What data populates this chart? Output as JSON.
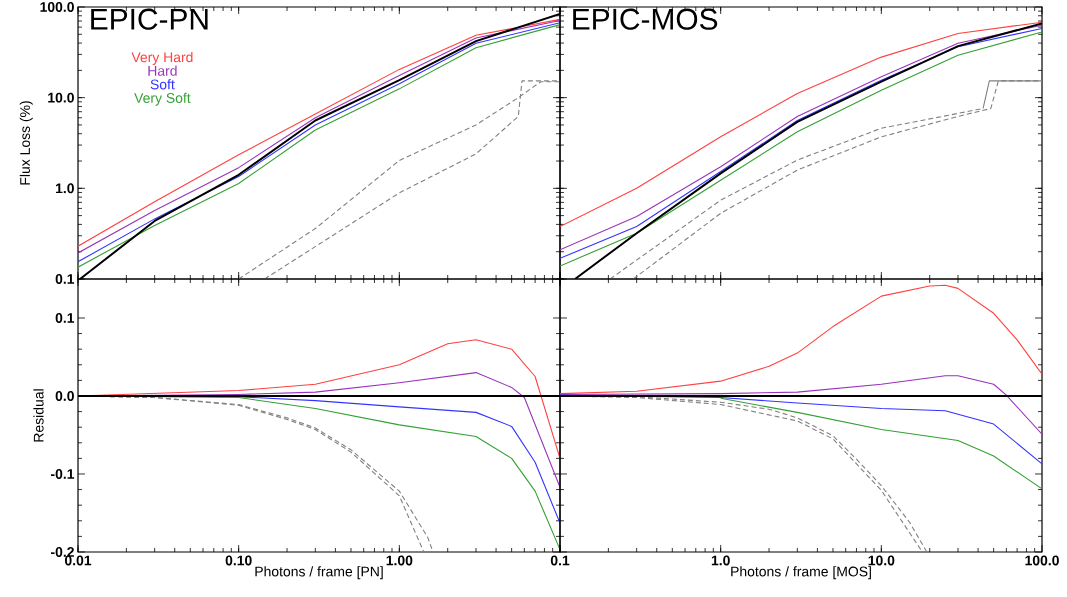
{
  "chart_data": [
    {
      "type": "line",
      "title": "EPIC-PN",
      "ylabel": "Flux Loss (%)",
      "log": "xy",
      "legend": "top left",
      "tick_labels": "y",
      "xlim": [
        0.01,
        10
      ],
      "xticks": [
        0.01,
        0.1,
        1,
        10
      ],
      "ylim": [
        0.1,
        100
      ],
      "yticks": [
        0.1,
        {
          "value": 1,
          "label": "1.0"
        },
        {
          "value": 10,
          "label": "10.0"
        },
        {
          "value": 100,
          "label": "100.0"
        }
      ],
      "series": [
        {
          "name": "Very Hard",
          "color": "#ff4040",
          "line_style": "solid",
          "x": [
            0.01,
            0.03,
            0.1,
            0.3,
            1,
            3,
            10
          ],
          "values": [
            0.23,
            0.71,
            2.34,
            6.6,
            20.5,
            48.8,
            73
          ]
        },
        {
          "name": "Hard",
          "color": "#9933bb",
          "line_style": "solid",
          "x": [
            0.01,
            0.03,
            0.1,
            0.3,
            1,
            3,
            10
          ],
          "values": [
            0.194,
            0.57,
            1.69,
            6.0,
            17.6,
            45.5,
            71
          ]
        },
        {
          "name": "Soft",
          "color": "#3333ff",
          "line_style": "solid",
          "x": [
            0.01,
            0.03,
            0.1,
            0.3,
            1,
            3,
            10
          ],
          "values": [
            0.155,
            0.46,
            1.35,
            5.0,
            14.2,
            39.8,
            67
          ]
        },
        {
          "name": "Very Soft",
          "color": "#33a033",
          "line_style": "solid",
          "x": [
            0.01,
            0.03,
            0.1,
            0.3,
            1,
            3,
            10
          ],
          "values": [
            0.135,
            0.39,
            1.13,
            4.4,
            12.5,
            35.5,
            64
          ]
        },
        {
          "color": "#000000",
          "line_style": "solid",
          "x": [
            0.0103,
            0.03,
            0.1,
            0.3,
            1,
            3,
            10
          ],
          "values": [
            0.1,
            0.437,
            1.41,
            5.6,
            15.6,
            42,
            84
          ]
        },
        {
          "color": "#808080",
          "line_style": "dashed",
          "x": [
            0.1,
            0.3,
            1,
            3,
            5.5,
            7.6,
            10
          ],
          "values": [
            0.1,
            0.36,
            2.03,
            5.0,
            10,
            15,
            15
          ]
        },
        {
          "color": "#808080",
          "line_style": "dashed",
          "x": [
            0.145,
            1,
            3,
            5.5,
            5.8,
            10
          ],
          "values": [
            0.1,
            0.89,
            2.4,
            6.2,
            15.3,
            15.3
          ]
        }
      ]
    },
    {
      "type": "line",
      "title": "EPIC-MOS",
      "log": "xy",
      "tick_labels": false,
      "xlim": [
        0.1,
        100
      ],
      "xticks": [
        0.1,
        1,
        10,
        100
      ],
      "ylim": [
        0.1,
        100
      ],
      "yticks": [
        0.1,
        1,
        10,
        100
      ],
      "series": [
        {
          "color": "#ff4040",
          "line_style": "solid",
          "x": [
            0.1,
            0.3,
            1,
            3,
            10,
            30,
            100
          ],
          "values": [
            0.378,
            1.0,
            3.7,
            11.1,
            28,
            51,
            68
          ]
        },
        {
          "color": "#9933bb",
          "line_style": "solid",
          "x": [
            0.1,
            0.3,
            1,
            3,
            10,
            30,
            100
          ],
          "values": [
            0.21,
            0.49,
            1.73,
            6.2,
            17.0,
            39.8,
            63
          ]
        },
        {
          "color": "#3333ff",
          "line_style": "solid",
          "x": [
            0.1,
            0.3,
            1,
            3,
            10,
            30,
            100
          ],
          "values": [
            0.169,
            0.38,
            1.53,
            5.6,
            15.6,
            36.5,
            58
          ]
        },
        {
          "color": "#33a033",
          "line_style": "solid",
          "x": [
            0.1,
            0.3,
            1,
            3,
            10,
            30,
            100
          ],
          "values": [
            0.139,
            0.32,
            1.23,
            4.2,
            12.1,
            29.4,
            53
          ]
        },
        {
          "color": "#000000",
          "line_style": "solid",
          "x": [
            0.124,
            0.3,
            1,
            3,
            10,
            30,
            100
          ],
          "values": [
            0.1,
            0.32,
            1.46,
            5.4,
            15.0,
            37,
            66
          ]
        },
        {
          "color": "#808080",
          "line_style": "dashed",
          "x": [
            0.205,
            1,
            3,
            10,
            30,
            43
          ],
          "values": [
            0.1,
            0.74,
            2.05,
            4.6,
            6.7,
            7.6
          ]
        },
        {
          "color": "#808080",
          "line_style": "dashed",
          "x": [
            0.286,
            1,
            3,
            10,
            30,
            48,
            53.5,
            100
          ],
          "values": [
            0.1,
            0.53,
            1.59,
            3.7,
            6.2,
            7.6,
            15.3,
            15.3
          ]
        },
        {
          "color": "#808080",
          "line_style": "solid",
          "x": [
            43,
            47,
            100
          ],
          "values": [
            7.6,
            15.3,
            15.3
          ]
        }
      ]
    },
    {
      "type": "line",
      "xlabel": "Photons / frame [PN]",
      "ylabel": "Residual",
      "log": "x",
      "xlim": [
        0.01,
        10
      ],
      "xticks": [
        0.01,
        {
          "value": 0.1,
          "label": "0.10"
        },
        {
          "value": 1,
          "label": "1.00"
        },
        {
          "value": 10,
          "label": null
        }
      ],
      "ylim": [
        -0.2,
        0.15
      ],
      "yticks": [
        -0.2,
        -0.1,
        {
          "value": 0,
          "label": "0.0"
        },
        0.1
      ],
      "ref_lines": [
        {
          "axis": "y",
          "value": 0,
          "color": "#000000"
        }
      ],
      "series": [
        {
          "color": "#ff4040",
          "line_style": "solid",
          "x": [
            0.01,
            0.1,
            0.3,
            1,
            2,
            3,
            5,
            7,
            10
          ],
          "values": [
            0.0,
            0.007,
            0.015,
            0.04,
            0.067,
            0.072,
            0.06,
            0.025,
            -0.08
          ]
        },
        {
          "color": "#9933bb",
          "line_style": "solid",
          "x": [
            0.01,
            0.1,
            0.3,
            1,
            3,
            5,
            6,
            10
          ],
          "values": [
            0.0,
            0.002,
            0.005,
            0.017,
            0.03,
            0.011,
            -0.002,
            -0.117
          ]
        },
        {
          "color": "#3333ff",
          "line_style": "solid",
          "x": [
            0.01,
            0.1,
            0.3,
            1,
            3,
            5,
            7,
            10
          ],
          "values": [
            0.0,
            -0.001,
            -0.006,
            -0.014,
            -0.021,
            -0.039,
            -0.085,
            -0.163
          ]
        },
        {
          "color": "#33a033",
          "line_style": "solid",
          "x": [
            0.01,
            0.1,
            0.3,
            1,
            3,
            5,
            7,
            10
          ],
          "values": [
            0.0,
            -0.002,
            -0.016,
            -0.037,
            -0.052,
            -0.08,
            -0.122,
            -0.197
          ]
        },
        {
          "color": "#808080",
          "line_style": "dashed",
          "x": [
            0.01,
            0.03,
            0.1,
            0.2,
            0.3,
            0.5,
            1,
            1.42
          ],
          "values": [
            0.0,
            -0.002,
            -0.012,
            -0.03,
            -0.043,
            -0.072,
            -0.128,
            -0.2
          ]
        },
        {
          "color": "#808080",
          "line_style": "dashed",
          "x": [
            0.01,
            0.03,
            0.1,
            0.2,
            0.3,
            0.5,
            1,
            1.5,
            1.62
          ],
          "values": [
            0.0,
            -0.002,
            -0.011,
            -0.028,
            -0.041,
            -0.069,
            -0.122,
            -0.181,
            -0.2
          ]
        }
      ]
    },
    {
      "type": "line",
      "xlabel": "Photons / frame [MOS]",
      "log": "x",
      "tick_labels": "x",
      "xlim": [
        0.1,
        100
      ],
      "xticks": [
        0.1,
        {
          "value": 1,
          "label": "1.0"
        },
        {
          "value": 10,
          "label": "10.0"
        },
        {
          "value": 100,
          "label": "100.0"
        }
      ],
      "ylim": [
        -0.2,
        0.15
      ],
      "yticks": [
        -0.2,
        -0.1,
        0,
        0.1
      ],
      "ref_lines": [
        {
          "axis": "y",
          "value": 0,
          "color": "#000000"
        }
      ],
      "series": [
        {
          "color": "#ff4040",
          "line_style": "solid",
          "x": [
            0.1,
            0.3,
            1,
            2,
            3,
            5,
            10,
            20,
            25,
            30,
            50,
            70,
            100
          ],
          "values": [
            0.003,
            0.006,
            0.019,
            0.038,
            0.055,
            0.089,
            0.128,
            0.141,
            0.142,
            0.138,
            0.106,
            0.072,
            0.028
          ]
        },
        {
          "color": "#9933bb",
          "line_style": "solid",
          "x": [
            0.1,
            1,
            3,
            10,
            25,
            30,
            50,
            60,
            100
          ],
          "values": [
            0.002,
            0.003,
            0.005,
            0.015,
            0.026,
            0.026,
            0.015,
            0.001,
            -0.049
          ]
        },
        {
          "color": "#3333ff",
          "line_style": "solid",
          "x": [
            0.1,
            1,
            3,
            10,
            25,
            50,
            100
          ],
          "values": [
            0.001,
            -0.002,
            -0.009,
            -0.016,
            -0.019,
            -0.036,
            -0.087
          ]
        },
        {
          "color": "#33a033",
          "line_style": "solid",
          "x": [
            1,
            3,
            10,
            30,
            50,
            100
          ],
          "values": [
            -0.003,
            -0.021,
            -0.043,
            -0.057,
            -0.077,
            -0.119
          ]
        },
        {
          "color": "#808080",
          "line_style": "dashed",
          "x": [
            0.1,
            0.3,
            1,
            2,
            3,
            5,
            7,
            10,
            15,
            19.2
          ],
          "values": [
            0.0,
            -0.001,
            -0.008,
            -0.017,
            -0.028,
            -0.051,
            -0.081,
            -0.115,
            -0.162,
            -0.2
          ]
        },
        {
          "color": "#808080",
          "line_style": "dashed",
          "x": [
            0.1,
            0.3,
            1,
            3,
            5,
            10,
            18
          ],
          "values": [
            0.0,
            -0.002,
            -0.011,
            -0.032,
            -0.055,
            -0.121,
            -0.2
          ]
        }
      ]
    }
  ]
}
